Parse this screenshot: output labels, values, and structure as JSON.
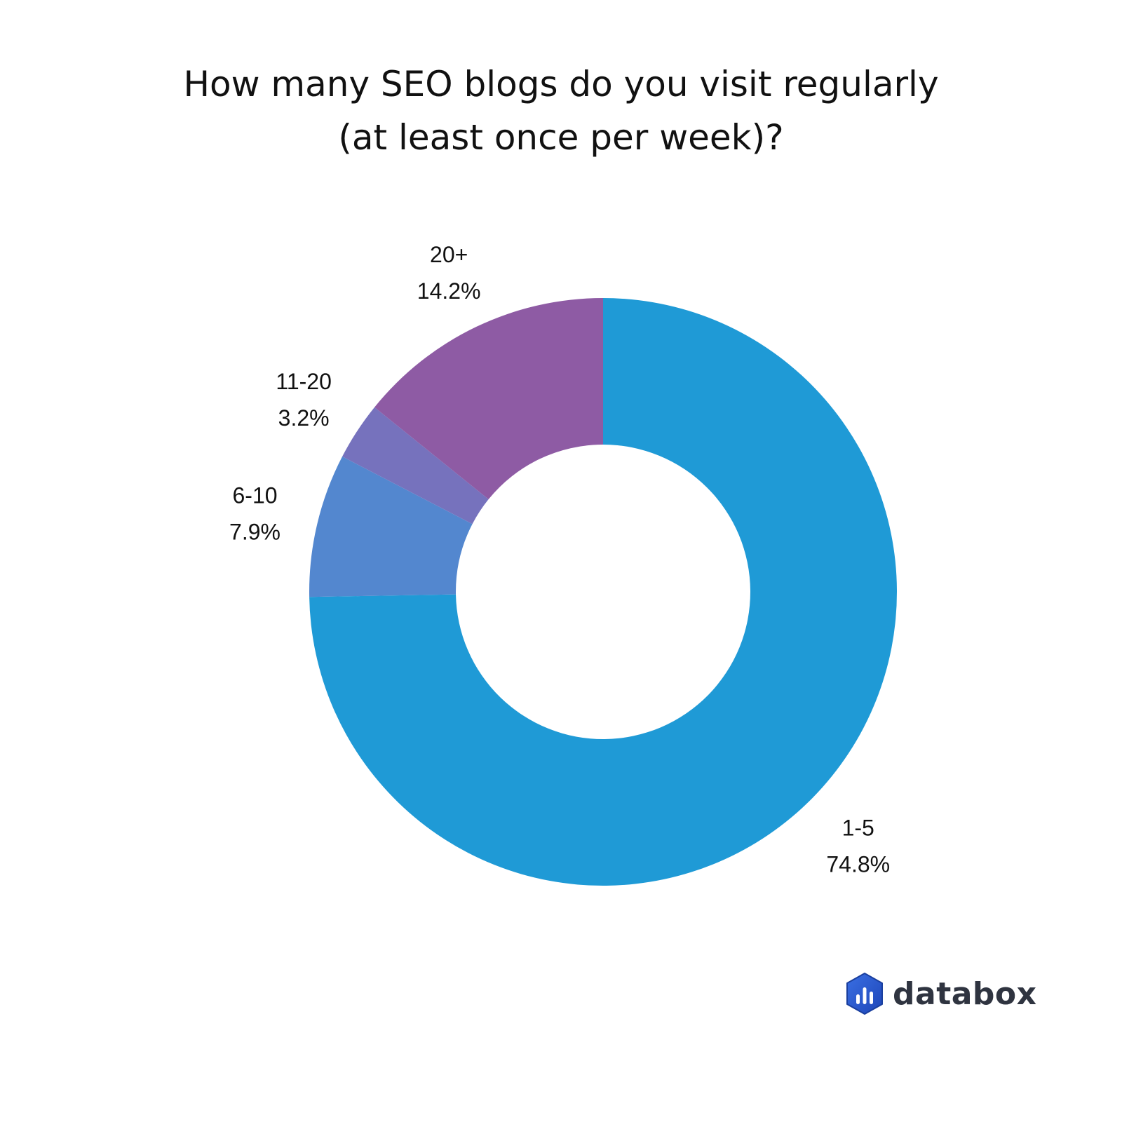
{
  "title_lines": [
    "How many SEO blogs do you visit regularly",
    "(at least once per week)?"
  ],
  "chart_data": {
    "type": "pie",
    "donut": true,
    "title": "How many SEO blogs do you visit regularly (at least once per week)?",
    "slices": [
      {
        "label": "1-5",
        "value": 74.8,
        "value_label": "74.8%",
        "color": "#1f9ad6"
      },
      {
        "label": "6-10",
        "value": 7.9,
        "value_label": "7.9%",
        "color": "#5387cf"
      },
      {
        "label": "11-20",
        "value": 3.2,
        "value_label": "3.2%",
        "color": "#7672bd"
      },
      {
        "label": "20+",
        "value": 14.2,
        "value_label": "14.2%",
        "color": "#8e5ba4"
      }
    ],
    "start": "12 o'clock",
    "direction": "clockwise"
  },
  "brand": {
    "name": "databox",
    "logo_color": "#2a5bd7",
    "text_color": "#2f3440"
  }
}
